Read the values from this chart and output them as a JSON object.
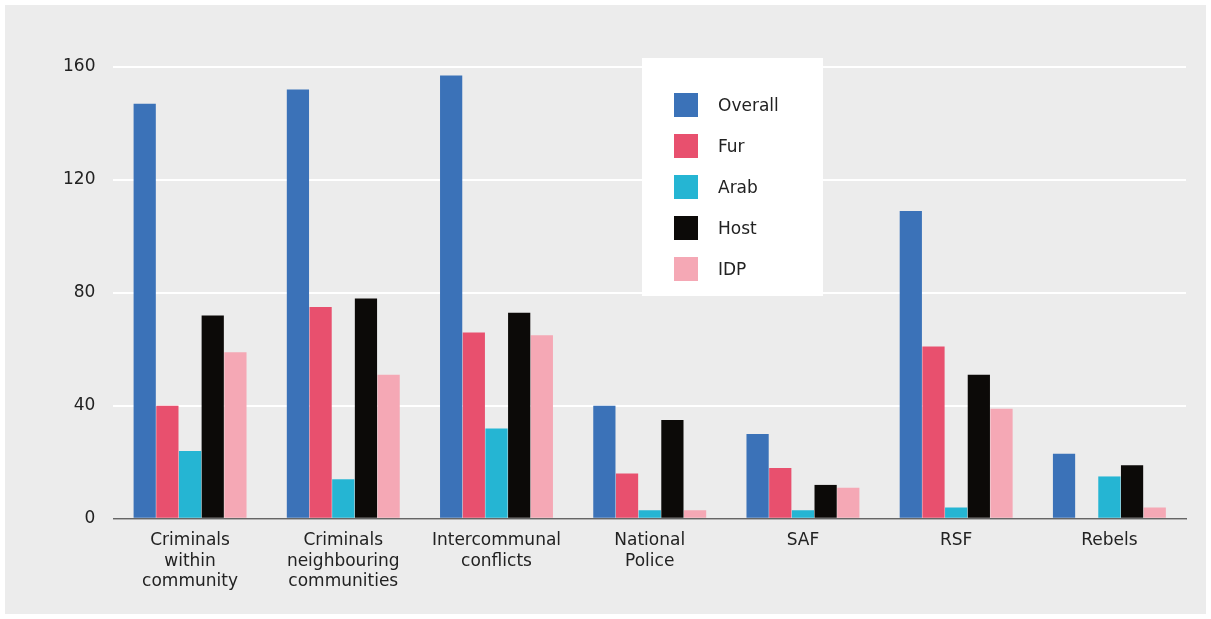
{
  "chart_data": {
    "type": "bar",
    "categories": [
      "Criminals within community",
      "Criminals neighbouring communities",
      "Intercommunal conflicts",
      "National Police",
      "SAF",
      "RSF",
      "Rebels"
    ],
    "series": [
      {
        "name": "Overall",
        "color": "#3b72b8",
        "values": [
          147,
          152,
          157,
          40,
          30,
          109,
          23
        ]
      },
      {
        "name": "Fur",
        "color": "#e8506e",
        "values": [
          40,
          75,
          66,
          16,
          18,
          61,
          null
        ]
      },
      {
        "name": "Arab",
        "color": "#25b5d3",
        "values": [
          24,
          14,
          32,
          3,
          3,
          4,
          15
        ]
      },
      {
        "name": "Host",
        "color": "#0c0a08",
        "values": [
          72,
          78,
          73,
          35,
          12,
          51,
          19
        ]
      },
      {
        "name": "IDP",
        "color": "#f5a8b5",
        "values": [
          59,
          51,
          65,
          3,
          11,
          39,
          4
        ]
      }
    ],
    "ylim": [
      0,
      160
    ],
    "yticks": [
      0,
      40,
      80,
      120,
      160
    ],
    "grid": "y",
    "legend": "top"
  }
}
